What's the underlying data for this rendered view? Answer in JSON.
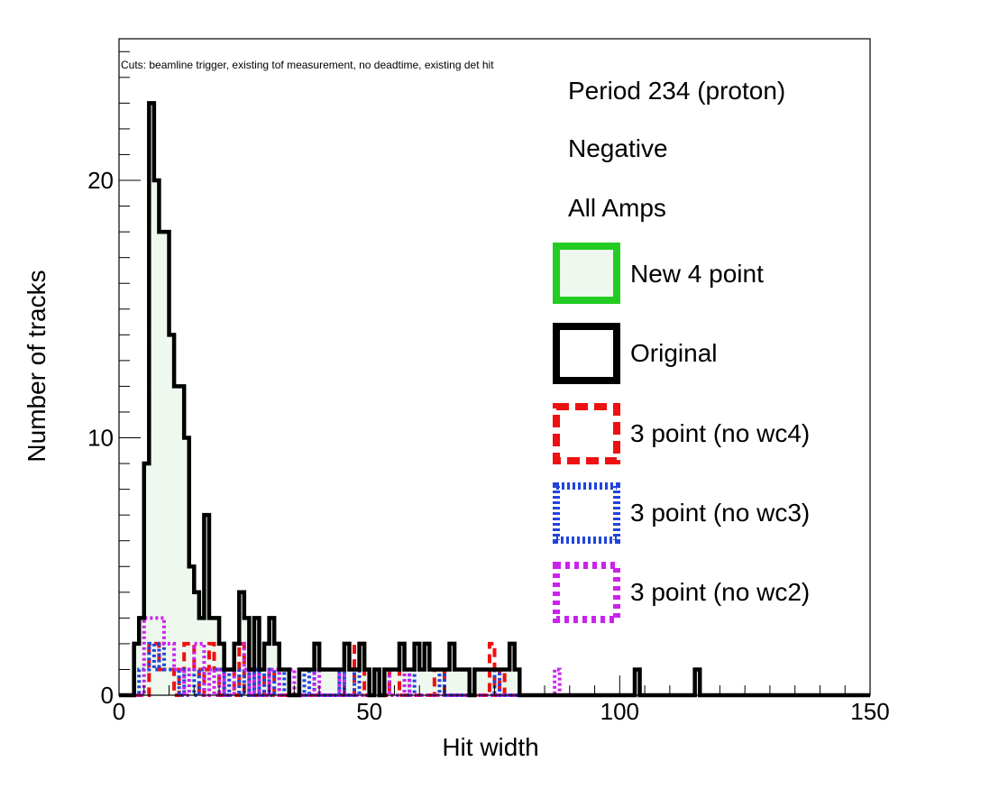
{
  "chart_data": {
    "type": "histogram",
    "title": "",
    "cuts_note": "Cuts: beamline trigger, existing tof measurement, no deadtime, existing det hit",
    "xlabel": "Hit width",
    "ylabel": "Number of tracks",
    "xlim": [
      0,
      150
    ],
    "ylim": [
      0,
      25.5
    ],
    "bin_width": 1,
    "x_ticks": [
      0,
      50,
      100,
      150
    ],
    "y_ticks": [
      0,
      10,
      20
    ],
    "grid": false,
    "legend_placement": "right",
    "annotations": [
      "Period 234 (proton)",
      "Negative",
      "All Amps"
    ],
    "series": [
      {
        "name": "New 4 point",
        "color": "#22cc22",
        "fill": "#eef8ee",
        "style": "solid",
        "bins": [
          [
            3,
            2
          ],
          [
            4,
            3
          ],
          [
            5,
            9
          ],
          [
            6,
            23
          ],
          [
            7,
            20
          ],
          [
            8,
            18
          ],
          [
            9,
            18
          ],
          [
            10,
            14
          ],
          [
            11,
            12
          ],
          [
            12,
            12
          ],
          [
            13,
            10
          ],
          [
            14,
            5
          ],
          [
            15,
            4
          ],
          [
            16,
            3
          ],
          [
            17,
            7
          ],
          [
            18,
            3
          ],
          [
            19,
            3
          ],
          [
            20,
            2
          ],
          [
            21,
            1
          ],
          [
            22,
            1
          ],
          [
            23,
            2
          ],
          [
            24,
            4
          ],
          [
            25,
            3
          ],
          [
            26,
            1
          ],
          [
            27,
            3
          ],
          [
            28,
            1
          ],
          [
            29,
            2
          ],
          [
            30,
            3
          ],
          [
            31,
            2
          ],
          [
            32,
            1
          ],
          [
            33,
            1
          ],
          [
            34,
            0
          ],
          [
            35,
            0
          ],
          [
            36,
            1
          ],
          [
            37,
            1
          ],
          [
            38,
            1
          ],
          [
            39,
            2
          ],
          [
            40,
            1
          ],
          [
            41,
            1
          ],
          [
            42,
            1
          ],
          [
            43,
            1
          ],
          [
            44,
            1
          ],
          [
            45,
            2
          ],
          [
            46,
            1
          ],
          [
            47,
            1
          ],
          [
            48,
            2
          ],
          [
            49,
            1
          ],
          [
            50,
            0
          ],
          [
            51,
            1
          ],
          [
            52,
            0
          ],
          [
            53,
            1
          ],
          [
            54,
            1
          ],
          [
            55,
            1
          ],
          [
            56,
            2
          ],
          [
            57,
            1
          ],
          [
            58,
            1
          ],
          [
            59,
            2
          ],
          [
            60,
            1
          ],
          [
            61,
            2
          ],
          [
            62,
            1
          ],
          [
            63,
            1
          ],
          [
            64,
            1
          ],
          [
            65,
            1
          ],
          [
            66,
            2
          ],
          [
            67,
            1
          ],
          [
            68,
            1
          ],
          [
            69,
            1
          ],
          [
            70,
            0
          ],
          [
            71,
            1
          ],
          [
            72,
            1
          ],
          [
            73,
            1
          ],
          [
            74,
            1
          ],
          [
            75,
            1
          ],
          [
            76,
            1
          ],
          [
            77,
            1
          ],
          [
            78,
            2
          ],
          [
            79,
            1
          ],
          [
            103,
            1
          ],
          [
            115,
            1
          ]
        ]
      },
      {
        "name": "Original",
        "color": "#000000",
        "style": "solid",
        "bins": [
          [
            3,
            2
          ],
          [
            4,
            3
          ],
          [
            5,
            9
          ],
          [
            6,
            23
          ],
          [
            7,
            20
          ],
          [
            8,
            18
          ],
          [
            9,
            18
          ],
          [
            10,
            14
          ],
          [
            11,
            12
          ],
          [
            12,
            12
          ],
          [
            13,
            10
          ],
          [
            14,
            5
          ],
          [
            15,
            4
          ],
          [
            16,
            3
          ],
          [
            17,
            7
          ],
          [
            18,
            3
          ],
          [
            19,
            3
          ],
          [
            20,
            2
          ],
          [
            21,
            1
          ],
          [
            22,
            1
          ],
          [
            23,
            2
          ],
          [
            24,
            4
          ],
          [
            25,
            3
          ],
          [
            26,
            1
          ],
          [
            27,
            3
          ],
          [
            28,
            1
          ],
          [
            29,
            2
          ],
          [
            30,
            3
          ],
          [
            31,
            2
          ],
          [
            32,
            1
          ],
          [
            33,
            1
          ],
          [
            34,
            0
          ],
          [
            35,
            0
          ],
          [
            36,
            1
          ],
          [
            37,
            1
          ],
          [
            38,
            1
          ],
          [
            39,
            2
          ],
          [
            40,
            1
          ],
          [
            41,
            1
          ],
          [
            42,
            1
          ],
          [
            43,
            1
          ],
          [
            44,
            1
          ],
          [
            45,
            2
          ],
          [
            46,
            1
          ],
          [
            47,
            1
          ],
          [
            48,
            2
          ],
          [
            49,
            1
          ],
          [
            50,
            0
          ],
          [
            51,
            1
          ],
          [
            52,
            0
          ],
          [
            53,
            1
          ],
          [
            54,
            1
          ],
          [
            55,
            1
          ],
          [
            56,
            2
          ],
          [
            57,
            1
          ],
          [
            58,
            1
          ],
          [
            59,
            2
          ],
          [
            60,
            1
          ],
          [
            61,
            2
          ],
          [
            62,
            1
          ],
          [
            63,
            1
          ],
          [
            64,
            1
          ],
          [
            65,
            1
          ],
          [
            66,
            2
          ],
          [
            67,
            1
          ],
          [
            68,
            1
          ],
          [
            69,
            1
          ],
          [
            70,
            0
          ],
          [
            71,
            1
          ],
          [
            72,
            1
          ],
          [
            73,
            1
          ],
          [
            74,
            1
          ],
          [
            75,
            1
          ],
          [
            76,
            1
          ],
          [
            77,
            1
          ],
          [
            78,
            2
          ],
          [
            79,
            1
          ],
          [
            103,
            1
          ],
          [
            115,
            1
          ]
        ]
      },
      {
        "name": "3 point (no wc4)",
        "color": "#ee1111",
        "style": "dashed",
        "bins": [
          [
            6,
            2
          ],
          [
            7,
            2
          ],
          [
            8,
            1
          ],
          [
            9,
            1
          ],
          [
            10,
            1
          ],
          [
            12,
            1
          ],
          [
            13,
            2
          ],
          [
            14,
            2
          ],
          [
            15,
            1
          ],
          [
            17,
            1
          ],
          [
            18,
            2
          ],
          [
            19,
            1
          ],
          [
            21,
            1
          ],
          [
            22,
            1
          ],
          [
            24,
            2
          ],
          [
            26,
            1
          ],
          [
            28,
            1
          ],
          [
            30,
            1
          ],
          [
            47,
            2
          ],
          [
            48,
            2
          ],
          [
            54,
            1
          ],
          [
            55,
            1
          ],
          [
            63,
            1
          ],
          [
            64,
            1
          ],
          [
            74,
            2
          ],
          [
            76,
            1
          ]
        ]
      },
      {
        "name": "3 point (no wc3)",
        "color": "#2244dd",
        "style": "dotted",
        "bins": [
          [
            4,
            1
          ],
          [
            5,
            1
          ],
          [
            6,
            2
          ],
          [
            7,
            1
          ],
          [
            8,
            2
          ],
          [
            9,
            1
          ],
          [
            10,
            1
          ],
          [
            11,
            1
          ],
          [
            13,
            1
          ],
          [
            14,
            1
          ],
          [
            16,
            1
          ],
          [
            18,
            1
          ],
          [
            19,
            1
          ],
          [
            20,
            1
          ],
          [
            22,
            1
          ],
          [
            23,
            1
          ],
          [
            25,
            1
          ],
          [
            27,
            1
          ],
          [
            29,
            1
          ],
          [
            31,
            1
          ],
          [
            33,
            1
          ],
          [
            36,
            1
          ],
          [
            38,
            1
          ],
          [
            44,
            1
          ],
          [
            47,
            1
          ],
          [
            53,
            1
          ],
          [
            58,
            1
          ],
          [
            64,
            1
          ],
          [
            70,
            1
          ],
          [
            75,
            1
          ]
        ]
      },
      {
        "name": "3 point (no wc2)",
        "color": "#cc22ee",
        "style": "dotted",
        "bins": [
          [
            5,
            3
          ],
          [
            6,
            3
          ],
          [
            7,
            3
          ],
          [
            8,
            3
          ],
          [
            9,
            2
          ],
          [
            10,
            2
          ],
          [
            11,
            1
          ],
          [
            12,
            1
          ],
          [
            14,
            1
          ],
          [
            15,
            2
          ],
          [
            16,
            2
          ],
          [
            18,
            1
          ],
          [
            20,
            1
          ],
          [
            23,
            2
          ],
          [
            24,
            2
          ],
          [
            25,
            1
          ],
          [
            27,
            1
          ],
          [
            30,
            1
          ],
          [
            31,
            1
          ],
          [
            34,
            1
          ],
          [
            39,
            1
          ],
          [
            44,
            1
          ],
          [
            52,
            1
          ],
          [
            53,
            1
          ],
          [
            57,
            1
          ],
          [
            87,
            1
          ]
        ]
      }
    ]
  }
}
